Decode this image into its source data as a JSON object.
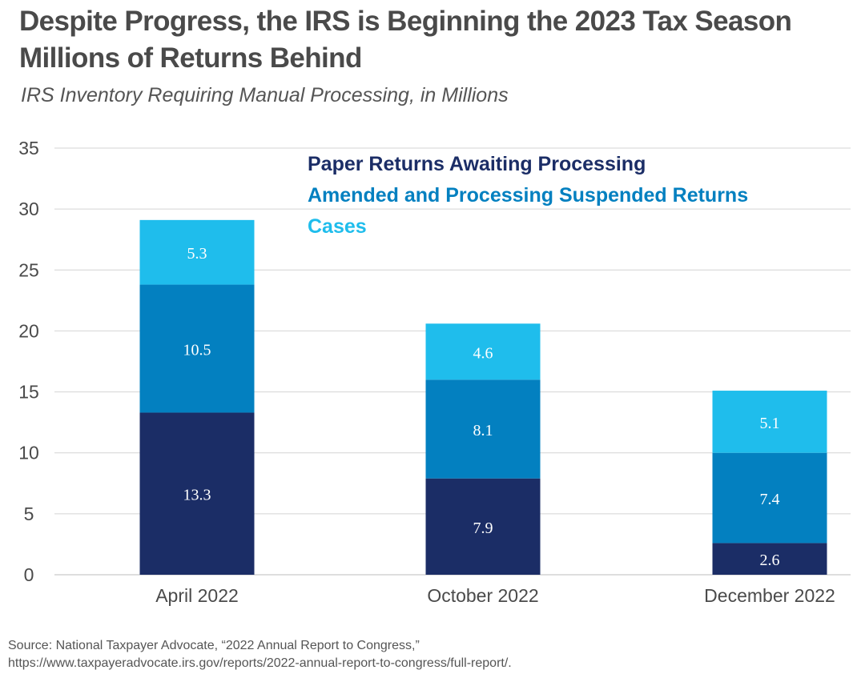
{
  "title_line1": "Despite Progress, the IRS is Beginning the 2023 Tax Season",
  "title_line2": "Millions of Returns Behind",
  "subtitle": "IRS Inventory Requiring Manual Processing, in Millions",
  "source_line1": "Source: National Taxpayer Advocate, “2022 Annual Report to Congress,”",
  "source_line2": "https://www.taxpayeradvocate.irs.gov/reports/2022-annual-report-to-congress/full-report/.",
  "colors": {
    "paper": "#1b2d66",
    "amended": "#0380c0",
    "cases": "#1fbdec",
    "grid": "#d4d4d4",
    "axis_text": "#4a4a4a",
    "label_text": "#ffffff"
  },
  "chart_data": {
    "type": "bar",
    "stacked": true,
    "categories": [
      "April 2022",
      "October 2022",
      "December 2022"
    ],
    "series": [
      {
        "name": "Paper Returns Awaiting Processing",
        "key": "paper",
        "values": [
          13.3,
          7.9,
          2.6
        ]
      },
      {
        "name": "Amended and Processing Suspended Returns",
        "key": "amended",
        "values": [
          10.5,
          8.1,
          7.4
        ]
      },
      {
        "name": "Cases",
        "key": "cases",
        "values": [
          5.3,
          4.6,
          5.1
        ]
      }
    ],
    "ylim": [
      0,
      35
    ],
    "yticks": [
      0,
      5,
      10,
      15,
      20,
      25,
      30,
      35
    ],
    "grid": true,
    "legend_position": "top-center",
    "xlabel": "",
    "ylabel": ""
  }
}
